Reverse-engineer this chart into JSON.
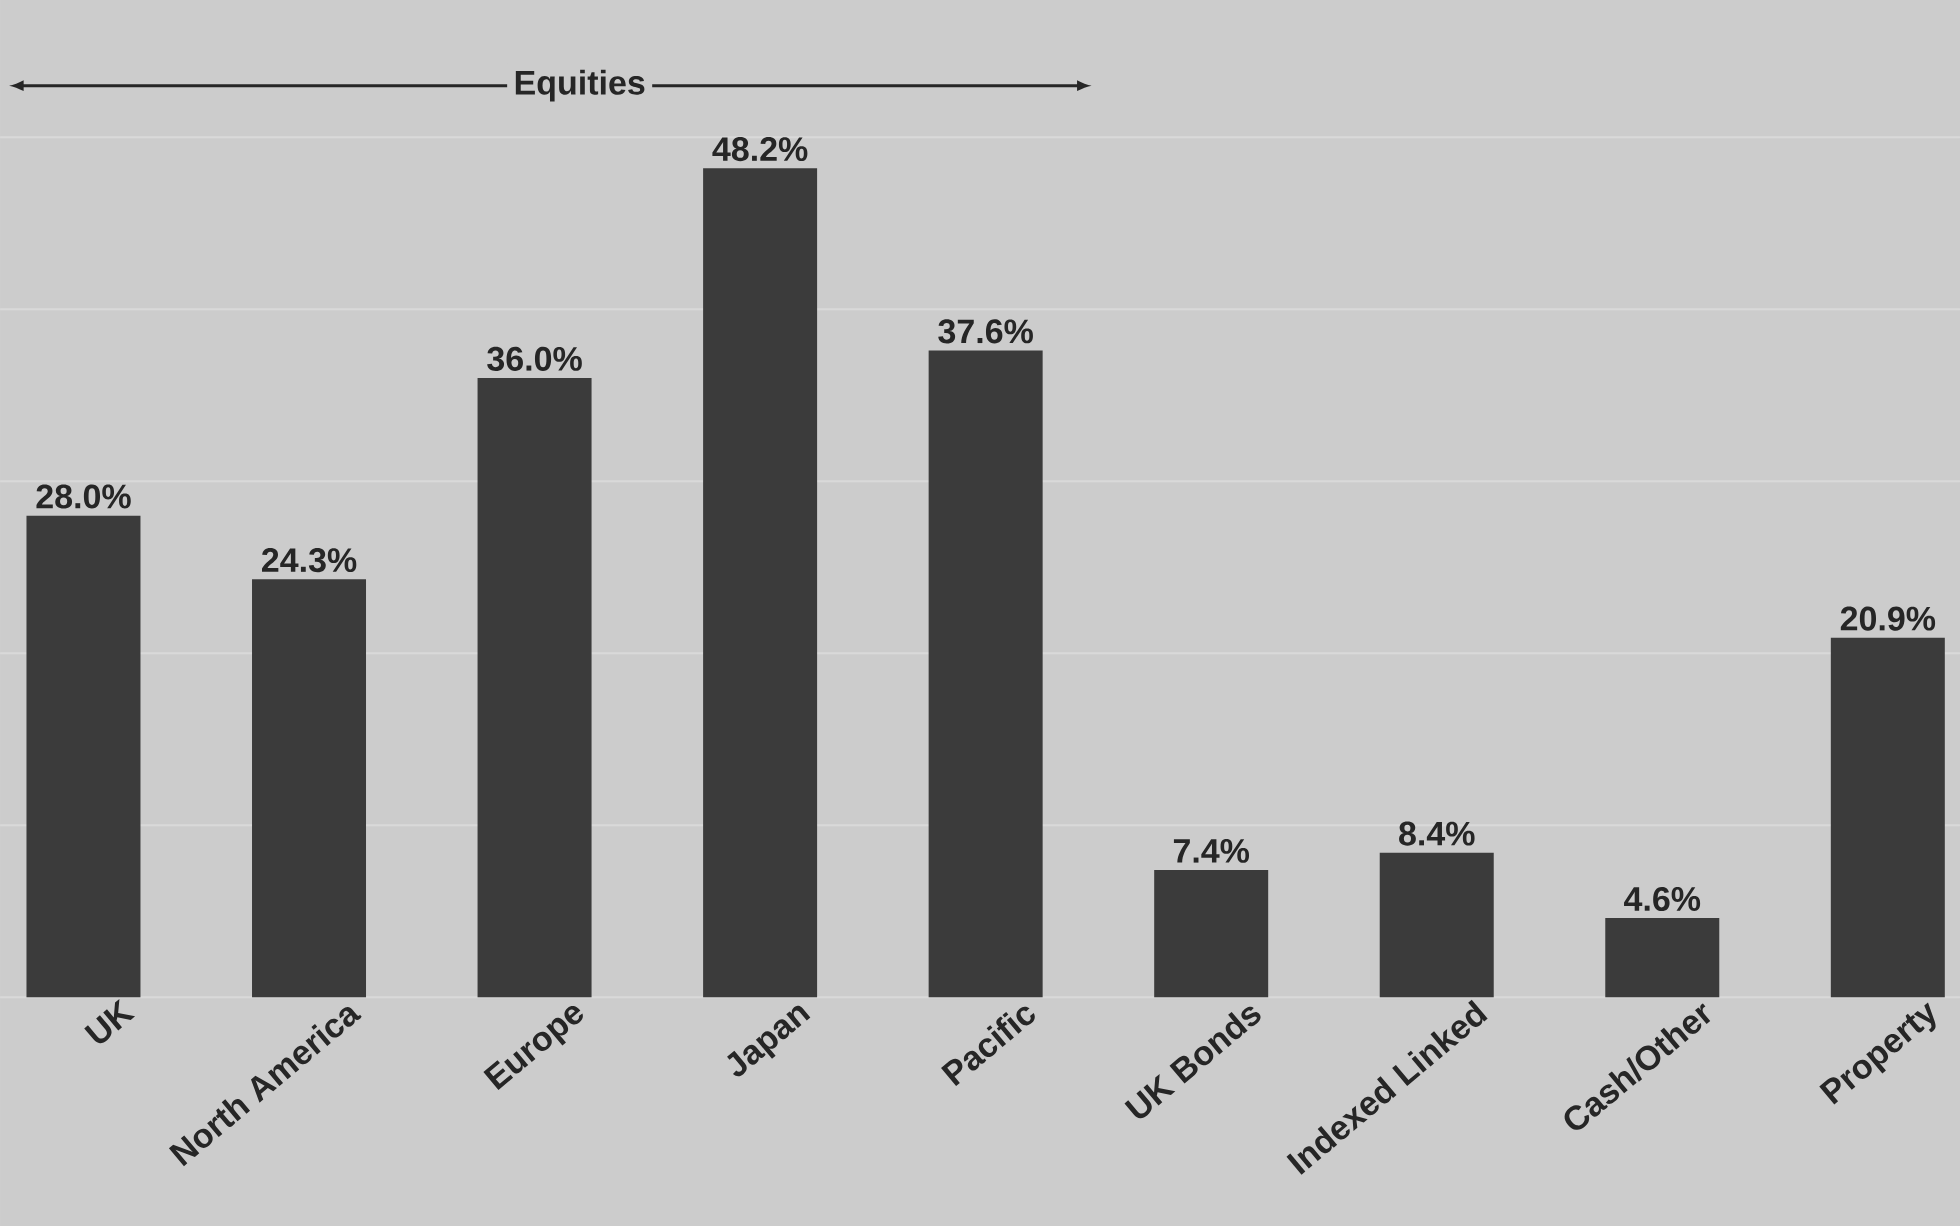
{
  "chart_data": {
    "type": "bar",
    "categories": [
      "UK",
      "North America",
      "Europe",
      "Japan",
      "Pacific",
      "UK Bonds",
      "Indexed Linked",
      "Cash/Other",
      "Property"
    ],
    "values": [
      28.0,
      24.3,
      36.0,
      48.2,
      37.6,
      7.4,
      8.4,
      4.6,
      20.9
    ],
    "value_labels": [
      "28.0%",
      "24.3%",
      "36.0%",
      "48.2%",
      "37.6%",
      "7.4%",
      "8.4%",
      "4.6%",
      "20.9%"
    ],
    "color": "#3b3b3b",
    "ylim": [
      0,
      50
    ],
    "yticks": [
      {
        "value": 0,
        "label": null
      },
      {
        "value": 10,
        "label": null
      },
      {
        "value": 20,
        "label": null
      },
      {
        "value": 30,
        "label": null
      },
      {
        "value": 40,
        "label": null
      },
      {
        "value": 50,
        "label": null
      }
    ],
    "tick_labels": "x",
    "grid": "y",
    "annotations": [
      "Equities"
    ]
  }
}
